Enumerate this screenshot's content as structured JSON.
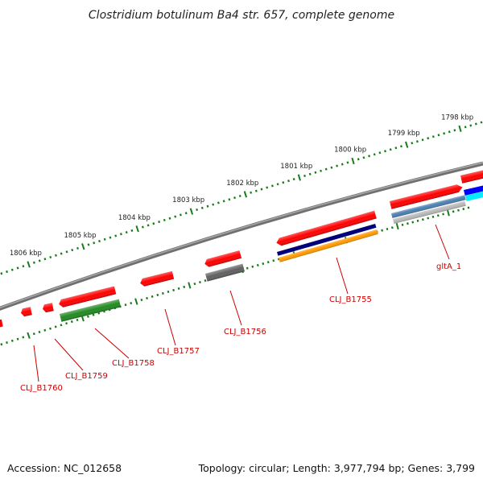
{
  "title": "Clostridium botulinum Ba4 str. 657, complete genome",
  "accession": "Accession: NC_012658",
  "summary": "Topology: circular; Length: 3,977,794 bp; Genes: 3,799",
  "scale_labels": [
    "1798 kbp",
    "1799 kbp",
    "1800 kbp",
    "1801 kbp",
    "1802 kbp",
    "1803 kbp",
    "1804 kbp",
    "1805 kbp",
    "1806 kbp"
  ],
  "gene_labels": [
    "gltA_1",
    "CLJ_B1755",
    "CLJ_B1756",
    "CLJ_B1757",
    "CLJ_B1758",
    "CLJ_B1759",
    "CLJ_B1760"
  ],
  "colors": {
    "cds": "#ff0000",
    "backbone": "#808080",
    "scale_ticks": "#1a7a1a",
    "track_green": "#228b22",
    "track_gray": "#606060",
    "track_navy": "#00007a",
    "track_orange": "#ff9900",
    "track_blue": "#0000ff",
    "track_steel": "#4a7fb0",
    "track_silver": "#b8b8b8",
    "track_cyan": "#00eeff",
    "label_text": "#cc0000"
  }
}
